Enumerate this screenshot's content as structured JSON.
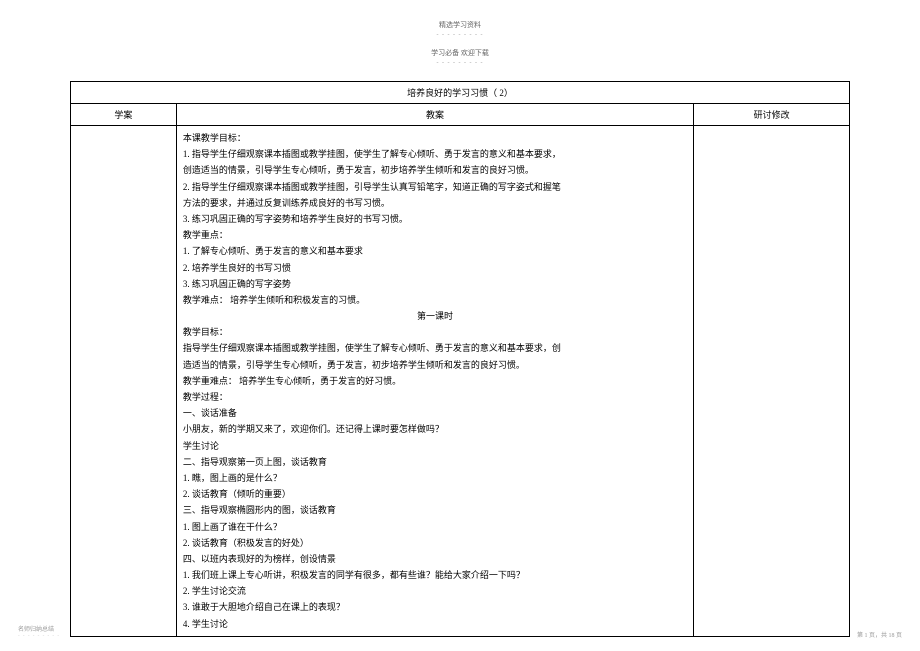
{
  "header": {
    "top_text": "精选学习资料",
    "sub_text": "学习必备    欢迎下载"
  },
  "table": {
    "title": "培养良好的学习习惯（   2）",
    "headers": {
      "col1": "学案",
      "col2": "教案",
      "col3": "研讨修改"
    },
    "content": {
      "line1": "本课教学目标：",
      "line2": "1. 指导学生仔细观察课本插图或教学挂图，使学生了解专心倾听、勇于发言的意义和基本要求，",
      "line3": "创造适当的情景，引导学生专心倾听，勇于发言，初步培养学生倾听和发言的良好习惯。",
      "line4": "2. 指导学生仔细观察课本插图或教学挂图，引导学生认真写铅笔字，知道正确的写字姿式和握笔",
      "line5": "方法的要求，并通过反复训练养成良好的书写习惯。",
      "line6": "3. 练习巩固正确的写字姿势和培养学生良好的书写习惯。",
      "line7": " 教学重点：",
      "line8": "1. 了解专心倾听、勇于发言的意义和基本要求",
      "line9": "2. 培养学生良好的书写习惯",
      "line10": "3. 练习巩固正确的写字姿势",
      "line11": "教学难点：  培养学生倾听和积极发言的习惯。",
      "line12": "",
      "line13": "第一课时",
      "line14": "教学目标：",
      "line15": "指导学生仔细观察课本插图或教学挂图，使学生了解专心倾听、勇于发言的意义和基本要求，创",
      "line16": "造适当的情景，引导学生专心倾听，勇于发言，初步培养学生倾听和发言的良好习惯。",
      "line17": "教学重难点：  培养学生专心倾听，勇于发言的好习惯。",
      "line18": "教学过程：",
      "line19": "一、谈话准备",
      "line20": "小朋友，新的学期又来了，欢迎你们。还记得上课时要怎样做吗？",
      "line21": "学生讨论",
      "line22": "二、指导观察第一页上图，谈话教育",
      "line23": "1. 瞧，图上画的是什么？",
      "line24": "2. 谈话教育（倾听的重要）",
      "line25": "三、指导观察椭圆形内的图，谈话教育",
      "line26": "1. 图上画了谁在干什么？",
      "line27": "2. 谈话教育（积极发言的好处）",
      "line28": "",
      "line29": "四、以班内表现好的为榜样，创设情景",
      "line30": "1. 我们班上课上专心听讲，积极发言的同学有很多，都有些谁？能给大家介绍一下吗？",
      "line31": "2. 学生讨论交流",
      "line32": "3. 谁敢于大胆地介绍自己在课上的表现？",
      "line33": "4. 学生讨论"
    }
  },
  "footer": {
    "left": "名师归纳总结",
    "right": "第 1 页，共 18 页"
  }
}
